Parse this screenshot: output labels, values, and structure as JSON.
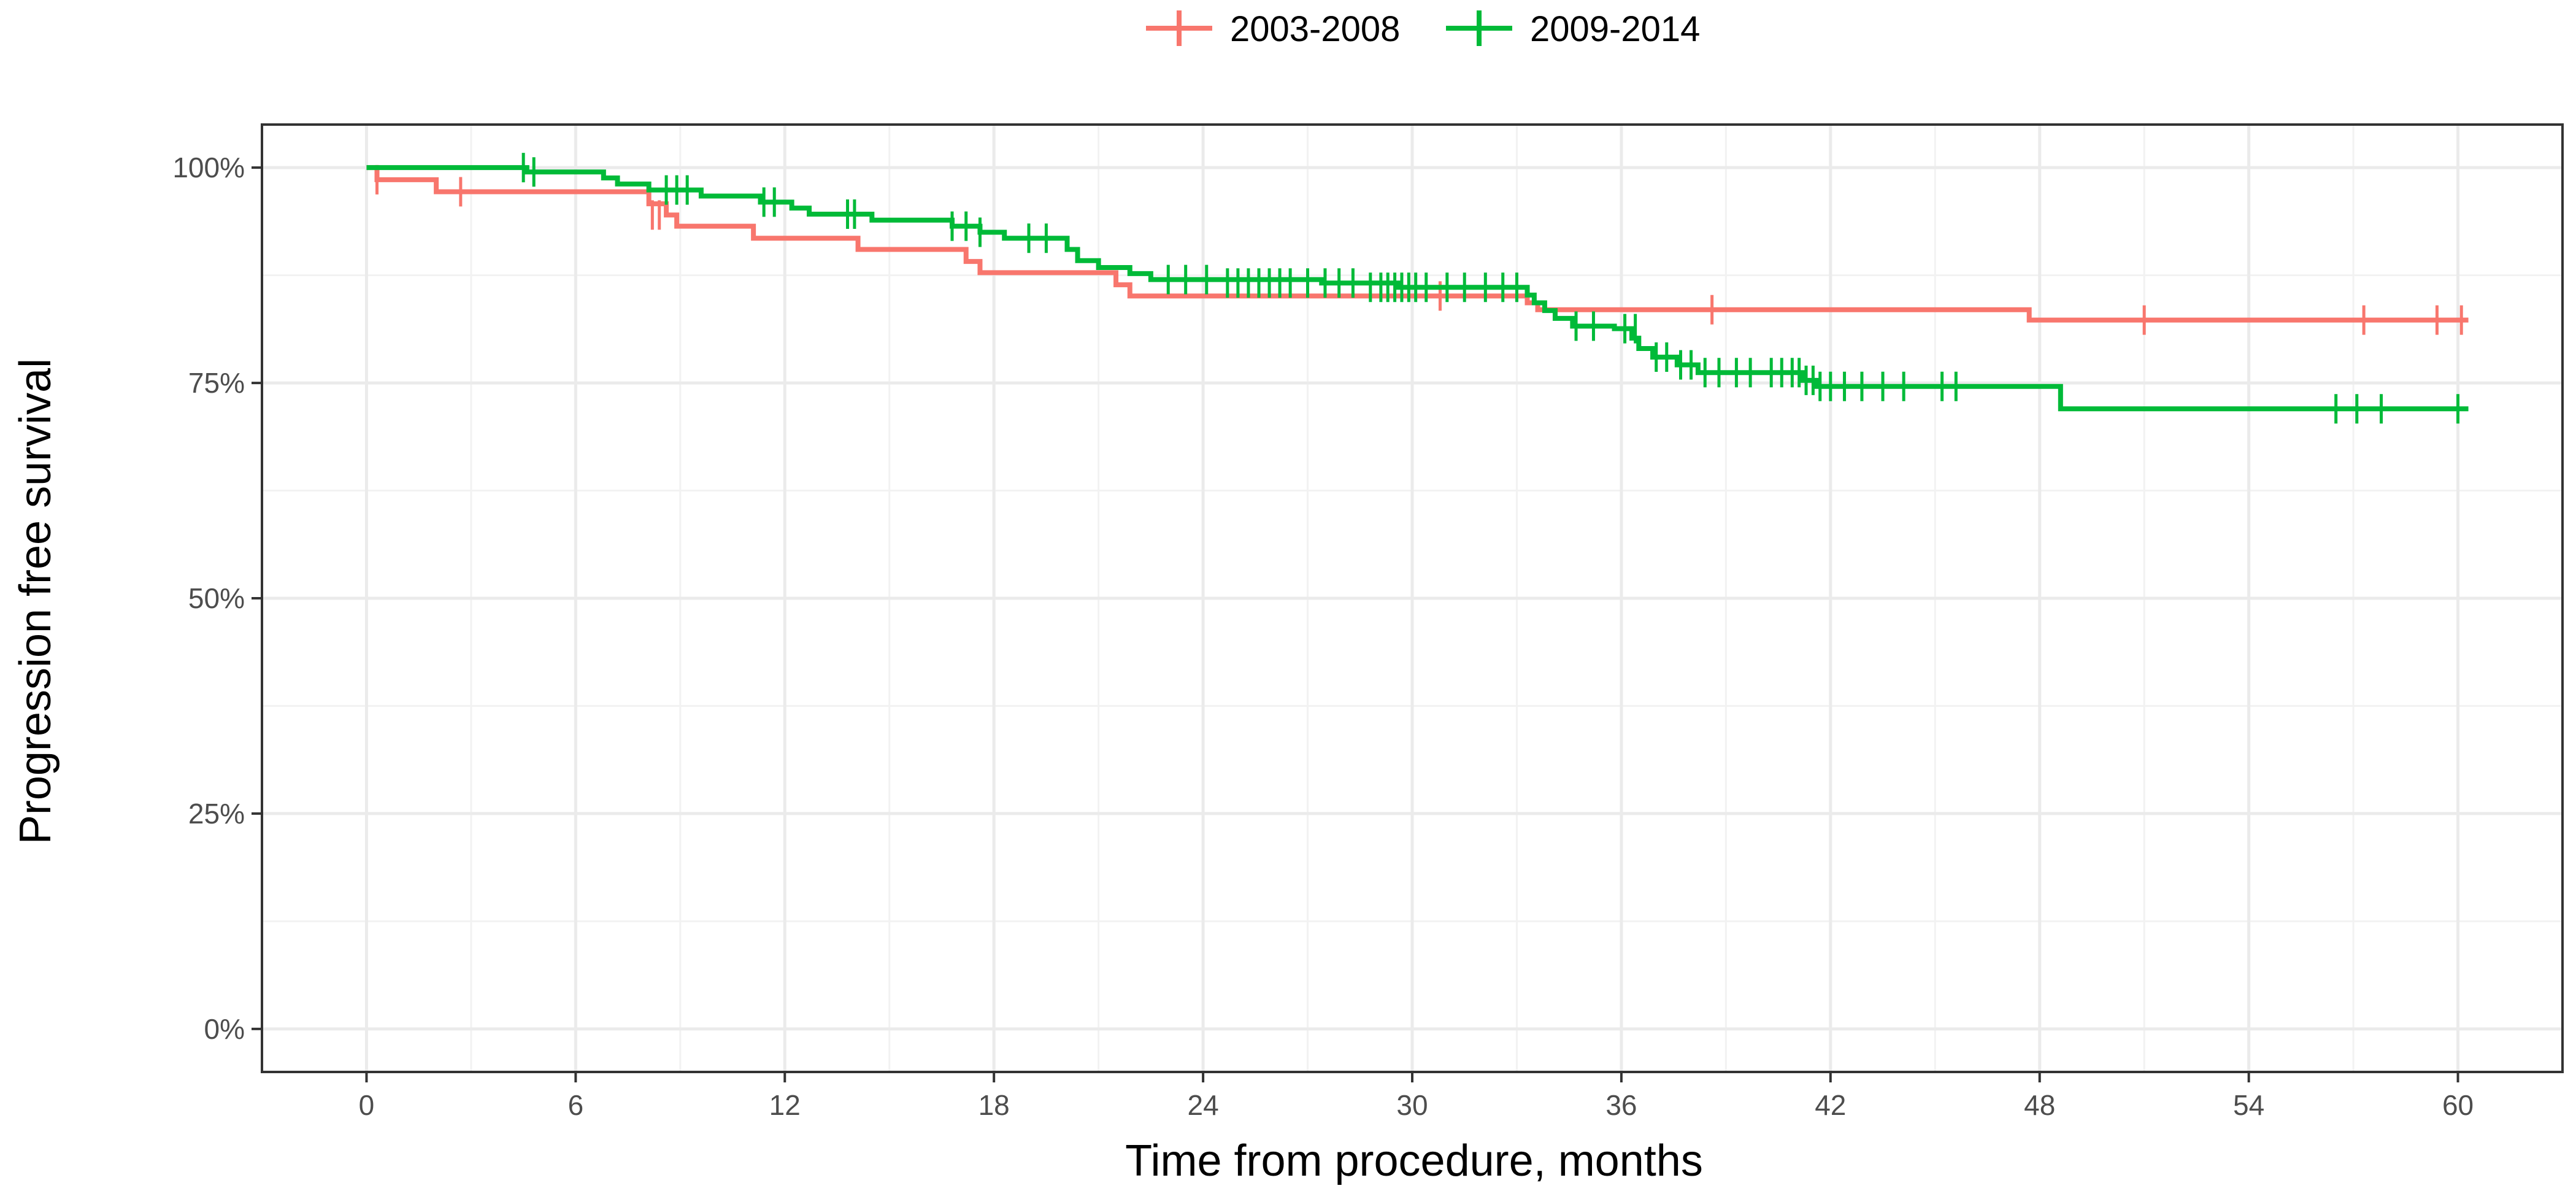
{
  "chart_data": {
    "type": "line",
    "step": true,
    "xlabel": "Time from procedure, months",
    "ylabel": "Progression free survival",
    "xlim": [
      -3,
      63
    ],
    "ylim": [
      -0.05,
      1.05
    ],
    "x_ticks": [
      0,
      6,
      12,
      18,
      24,
      30,
      36,
      42,
      48,
      54,
      60
    ],
    "y_ticks": [
      0,
      0.25,
      0.5,
      0.75,
      1.0
    ],
    "y_tick_labels": [
      "0%",
      "25%",
      "50%",
      "75%",
      "100%"
    ],
    "grid": true,
    "legend_position": "top",
    "series": [
      {
        "name": "2003-2008",
        "color": "#F8766D",
        "steps": [
          [
            0,
            1.0
          ],
          [
            0.3,
            0.986
          ],
          [
            2.0,
            0.972
          ],
          [
            8.1,
            0.958
          ],
          [
            8.6,
            0.945
          ],
          [
            8.9,
            0.932
          ],
          [
            11.1,
            0.918
          ],
          [
            14.1,
            0.905
          ],
          [
            17.2,
            0.891
          ],
          [
            17.6,
            0.878
          ],
          [
            21.5,
            0.864
          ],
          [
            21.9,
            0.851
          ],
          [
            33.3,
            0.843
          ],
          [
            33.6,
            0.835
          ],
          [
            47.7,
            0.823
          ],
          [
            60.3,
            0.823
          ]
        ],
        "censored": [
          [
            0.3,
            0.986
          ],
          [
            2.7,
            0.972
          ],
          [
            8.2,
            0.945
          ],
          [
            8.4,
            0.945
          ],
          [
            30.8,
            0.851
          ],
          [
            38.6,
            0.835
          ],
          [
            51.0,
            0.823
          ],
          [
            57.3,
            0.823
          ],
          [
            59.4,
            0.823
          ],
          [
            60.1,
            0.823
          ]
        ]
      },
      {
        "name": "2009-2014",
        "color": "#00BA38",
        "steps": [
          [
            0,
            1.0
          ],
          [
            4.6,
            0.995
          ],
          [
            6.8,
            0.988
          ],
          [
            7.2,
            0.981
          ],
          [
            8.1,
            0.974
          ],
          [
            9.6,
            0.967
          ],
          [
            11.3,
            0.96
          ],
          [
            12.2,
            0.953
          ],
          [
            12.7,
            0.946
          ],
          [
            14.5,
            0.939
          ],
          [
            16.8,
            0.932
          ],
          [
            17.6,
            0.925
          ],
          [
            18.3,
            0.918
          ],
          [
            20.1,
            0.905
          ],
          [
            20.4,
            0.892
          ],
          [
            21.0,
            0.884
          ],
          [
            21.9,
            0.877
          ],
          [
            22.5,
            0.87
          ],
          [
            27.4,
            0.866
          ],
          [
            29.6,
            0.861
          ],
          [
            33.3,
            0.852
          ],
          [
            33.5,
            0.843
          ],
          [
            33.8,
            0.834
          ],
          [
            34.1,
            0.825
          ],
          [
            34.6,
            0.816
          ],
          [
            35.8,
            0.813
          ],
          [
            36.3,
            0.802
          ],
          [
            36.5,
            0.79
          ],
          [
            36.9,
            0.78
          ],
          [
            37.6,
            0.771
          ],
          [
            38.2,
            0.762
          ],
          [
            39.0,
            0.762
          ],
          [
            41.2,
            0.753
          ],
          [
            41.6,
            0.746
          ],
          [
            48.6,
            0.72
          ],
          [
            60.3,
            0.72
          ]
        ],
        "censored": [
          [
            4.5,
            1.0
          ],
          [
            4.8,
            0.995
          ],
          [
            8.6,
            0.974
          ],
          [
            8.9,
            0.974
          ],
          [
            9.2,
            0.974
          ],
          [
            11.4,
            0.96
          ],
          [
            11.7,
            0.96
          ],
          [
            13.8,
            0.946
          ],
          [
            14.0,
            0.946
          ],
          [
            16.8,
            0.932
          ],
          [
            17.2,
            0.932
          ],
          [
            17.6,
            0.925
          ],
          [
            19.0,
            0.918
          ],
          [
            19.5,
            0.918
          ],
          [
            23.0,
            0.87
          ],
          [
            23.5,
            0.87
          ],
          [
            24.1,
            0.87
          ],
          [
            24.7,
            0.866
          ],
          [
            25.0,
            0.866
          ],
          [
            25.3,
            0.866
          ],
          [
            25.6,
            0.866
          ],
          [
            25.9,
            0.866
          ],
          [
            26.2,
            0.866
          ],
          [
            26.5,
            0.866
          ],
          [
            27.0,
            0.866
          ],
          [
            27.5,
            0.866
          ],
          [
            27.9,
            0.866
          ],
          [
            28.3,
            0.866
          ],
          [
            28.8,
            0.861
          ],
          [
            29.1,
            0.861
          ],
          [
            29.3,
            0.861
          ],
          [
            29.5,
            0.861
          ],
          [
            29.7,
            0.861
          ],
          [
            29.9,
            0.861
          ],
          [
            30.1,
            0.861
          ],
          [
            30.4,
            0.861
          ],
          [
            31.0,
            0.861
          ],
          [
            31.5,
            0.861
          ],
          [
            32.1,
            0.861
          ],
          [
            32.6,
            0.861
          ],
          [
            33.0,
            0.861
          ],
          [
            34.7,
            0.816
          ],
          [
            35.2,
            0.816
          ],
          [
            36.1,
            0.813
          ],
          [
            36.4,
            0.813
          ],
          [
            37.0,
            0.78
          ],
          [
            37.3,
            0.78
          ],
          [
            37.7,
            0.771
          ],
          [
            38.0,
            0.771
          ],
          [
            38.4,
            0.762
          ],
          [
            38.8,
            0.762
          ],
          [
            39.3,
            0.762
          ],
          [
            39.7,
            0.762
          ],
          [
            40.3,
            0.762
          ],
          [
            40.6,
            0.762
          ],
          [
            40.9,
            0.762
          ],
          [
            41.1,
            0.762
          ],
          [
            41.3,
            0.753
          ],
          [
            41.5,
            0.753
          ],
          [
            41.7,
            0.746
          ],
          [
            42.0,
            0.746
          ],
          [
            42.4,
            0.746
          ],
          [
            42.9,
            0.746
          ],
          [
            43.5,
            0.746
          ],
          [
            44.1,
            0.746
          ],
          [
            45.2,
            0.746
          ],
          [
            45.6,
            0.746
          ],
          [
            56.5,
            0.72
          ],
          [
            57.1,
            0.72
          ],
          [
            57.8,
            0.72
          ],
          [
            60.0,
            0.72
          ]
        ]
      }
    ]
  }
}
